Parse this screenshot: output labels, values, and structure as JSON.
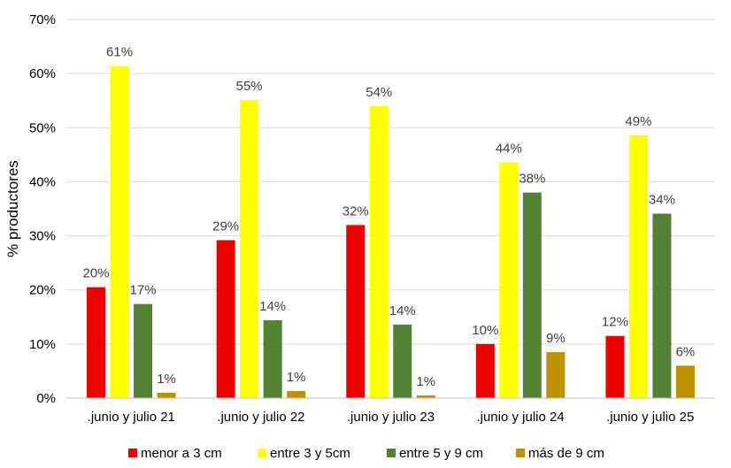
{
  "chart_data": {
    "type": "bar",
    "title": "",
    "xlabel": "",
    "ylabel": "% productores",
    "ylim": [
      0,
      70
    ],
    "yticks": [
      "0%",
      "10%",
      "20%",
      "30%",
      "40%",
      "50%",
      "60%",
      "70%"
    ],
    "grid": true,
    "legend_position": "bottom",
    "categories": [
      ".junio y julio 21",
      ".junio y julio 22",
      ".junio y julio 23",
      ".junio y julio 24",
      ".junio y julio 25"
    ],
    "series": [
      {
        "name": "menor a 3 cm",
        "color": "#ee0000",
        "values": [
          20.5,
          29.2,
          32.0,
          10.0,
          11.5
        ],
        "labels": [
          "20%",
          "29%",
          "32%",
          "10%",
          "12%"
        ]
      },
      {
        "name": "entre 3 y 5cm",
        "color": "#ffff00",
        "values": [
          61.4,
          55.1,
          54.0,
          43.6,
          48.6
        ],
        "labels": [
          "61%",
          "55%",
          "54%",
          "44%",
          "49%"
        ]
      },
      {
        "name": "entre 5 y 9 cm",
        "color": "#548235",
        "values": [
          17.4,
          14.4,
          13.6,
          38.0,
          34.1
        ],
        "labels": [
          "17%",
          "14%",
          "14%",
          "38%",
          "34%"
        ]
      },
      {
        "name": "más de 9 cm",
        "color": "#bf9000",
        "values": [
          1.0,
          1.3,
          0.5,
          8.5,
          6.0
        ],
        "labels": [
          "1%",
          "1%",
          "1%",
          "9%",
          "6%"
        ]
      }
    ]
  }
}
